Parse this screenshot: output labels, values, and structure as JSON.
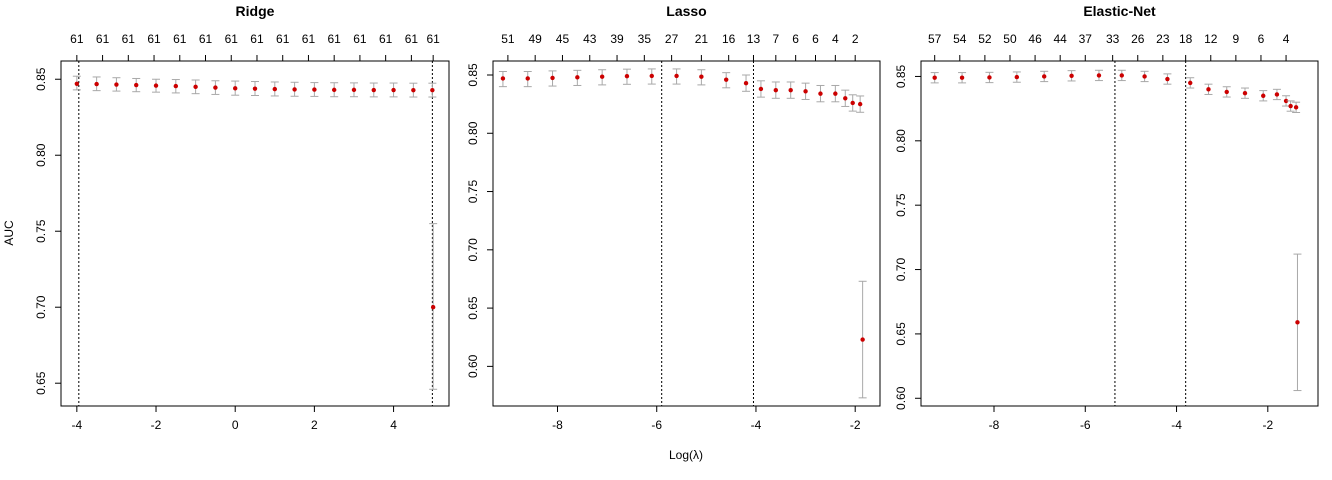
{
  "figure": {
    "ylabel": "AUC",
    "xlabel": "Log(λ)"
  },
  "chart_data": [
    {
      "type": "scatter",
      "title": "Ridge",
      "xlabel": "",
      "ylabel": "AUC",
      "xlim": [
        -4.4,
        5.4
      ],
      "ylim": [
        0.635,
        0.862
      ],
      "xticks": [
        -4,
        -2,
        0,
        2,
        4
      ],
      "yticks": [
        0.65,
        0.7,
        0.75,
        0.8,
        0.85
      ],
      "top_axis": {
        "labels": [
          "61",
          "61",
          "61",
          "61",
          "61",
          "61",
          "61",
          "61",
          "61",
          "61",
          "61",
          "61",
          "61",
          "61",
          "61"
        ],
        "positions": [
          -4,
          -3.35,
          -2.7,
          -2.05,
          -1.4,
          -0.75,
          -0.1,
          0.55,
          1.2,
          1.85,
          2.5,
          3.15,
          3.8,
          4.45,
          5
        ]
      },
      "vlines": [
        -3.95,
        4.98
      ],
      "series": [
        {
          "points": [
            {
              "x": -4.0,
              "y": 0.847,
              "lo": 0.843,
              "hi": 0.852
            },
            {
              "x": -3.5,
              "y": 0.8468,
              "lo": 0.8425,
              "hi": 0.8515
            },
            {
              "x": -3.0,
              "y": 0.8465,
              "lo": 0.8422,
              "hi": 0.851
            },
            {
              "x": -2.5,
              "y": 0.8462,
              "lo": 0.8418,
              "hi": 0.8505
            },
            {
              "x": -2.0,
              "y": 0.8458,
              "lo": 0.8415,
              "hi": 0.85
            },
            {
              "x": -1.5,
              "y": 0.8455,
              "lo": 0.841,
              "hi": 0.8498
            },
            {
              "x": -1.0,
              "y": 0.845,
              "lo": 0.8405,
              "hi": 0.8495
            },
            {
              "x": -0.5,
              "y": 0.8445,
              "lo": 0.84,
              "hi": 0.849
            },
            {
              "x": 0.0,
              "y": 0.844,
              "lo": 0.8395,
              "hi": 0.8488
            },
            {
              "x": 0.5,
              "y": 0.8438,
              "lo": 0.8393,
              "hi": 0.8485
            },
            {
              "x": 1.0,
              "y": 0.8435,
              "lo": 0.839,
              "hi": 0.8482
            },
            {
              "x": 1.5,
              "y": 0.8433,
              "lo": 0.8388,
              "hi": 0.848
            },
            {
              "x": 2.0,
              "y": 0.8432,
              "lo": 0.8387,
              "hi": 0.8478
            },
            {
              "x": 2.5,
              "y": 0.843,
              "lo": 0.8385,
              "hi": 0.8477
            },
            {
              "x": 3.0,
              "y": 0.843,
              "lo": 0.8385,
              "hi": 0.8476
            },
            {
              "x": 3.5,
              "y": 0.8429,
              "lo": 0.8384,
              "hi": 0.8475
            },
            {
              "x": 4.0,
              "y": 0.8429,
              "lo": 0.8384,
              "hi": 0.8475
            },
            {
              "x": 4.5,
              "y": 0.8428,
              "lo": 0.8383,
              "hi": 0.8474
            },
            {
              "x": 4.98,
              "y": 0.8428,
              "lo": 0.8383,
              "hi": 0.8474
            },
            {
              "x": 5.0,
              "y": 0.7,
              "lo": 0.646,
              "hi": 0.755
            }
          ]
        }
      ]
    },
    {
      "type": "scatter",
      "title": "Lasso",
      "xlabel": "Log(λ)",
      "ylabel": "",
      "xlim": [
        -9.3,
        -1.5
      ],
      "ylim": [
        0.566,
        0.862
      ],
      "xticks": [
        -8,
        -6,
        -4,
        -2
      ],
      "yticks": [
        0.6,
        0.65,
        0.7,
        0.75,
        0.8,
        0.85
      ],
      "top_axis": {
        "labels": [
          "51",
          "49",
          "45",
          "43",
          "39",
          "35",
          "27",
          "21",
          "16",
          "13",
          "7",
          "6",
          "6",
          "4",
          "2"
        ],
        "positions": [
          -9.0,
          -8.45,
          -7.9,
          -7.35,
          -6.8,
          -6.25,
          -5.7,
          -5.1,
          -4.55,
          -4.05,
          -3.6,
          -3.2,
          -2.8,
          -2.4,
          -2.0
        ]
      },
      "vlines": [
        -5.9,
        -4.05
      ],
      "series": [
        {
          "points": [
            {
              "x": -9.1,
              "y": 0.847,
              "lo": 0.84,
              "hi": 0.853
            },
            {
              "x": -8.6,
              "y": 0.847,
              "lo": 0.84,
              "hi": 0.853
            },
            {
              "x": -8.1,
              "y": 0.8475,
              "lo": 0.8405,
              "hi": 0.8535
            },
            {
              "x": -7.6,
              "y": 0.848,
              "lo": 0.841,
              "hi": 0.854
            },
            {
              "x": -7.1,
              "y": 0.8485,
              "lo": 0.8415,
              "hi": 0.8545
            },
            {
              "x": -6.6,
              "y": 0.849,
              "lo": 0.842,
              "hi": 0.855
            },
            {
              "x": -6.1,
              "y": 0.8492,
              "lo": 0.8422,
              "hi": 0.8552
            },
            {
              "x": -5.6,
              "y": 0.8492,
              "lo": 0.8422,
              "hi": 0.8552
            },
            {
              "x": -5.1,
              "y": 0.8485,
              "lo": 0.8415,
              "hi": 0.8545
            },
            {
              "x": -4.6,
              "y": 0.846,
              "lo": 0.839,
              "hi": 0.852
            },
            {
              "x": -4.2,
              "y": 0.843,
              "lo": 0.836,
              "hi": 0.85
            },
            {
              "x": -3.9,
              "y": 0.838,
              "lo": 0.831,
              "hi": 0.845
            },
            {
              "x": -3.6,
              "y": 0.837,
              "lo": 0.83,
              "hi": 0.844
            },
            {
              "x": -3.3,
              "y": 0.837,
              "lo": 0.83,
              "hi": 0.844
            },
            {
              "x": -3.0,
              "y": 0.836,
              "lo": 0.829,
              "hi": 0.843
            },
            {
              "x": -2.7,
              "y": 0.834,
              "lo": 0.827,
              "hi": 0.841
            },
            {
              "x": -2.4,
              "y": 0.834,
              "lo": 0.827,
              "hi": 0.841
            },
            {
              "x": -2.2,
              "y": 0.83,
              "lo": 0.823,
              "hi": 0.837
            },
            {
              "x": -2.05,
              "y": 0.826,
              "lo": 0.819,
              "hi": 0.833
            },
            {
              "x": -1.9,
              "y": 0.825,
              "lo": 0.818,
              "hi": 0.832
            },
            {
              "x": -1.85,
              "y": 0.623,
              "lo": 0.573,
              "hi": 0.673
            }
          ]
        }
      ]
    },
    {
      "type": "scatter",
      "title": "Elastic-Net",
      "xlabel": "",
      "ylabel": "",
      "xlim": [
        -9.6,
        -0.9
      ],
      "ylim": [
        0.594,
        0.862
      ],
      "xticks": [
        -8,
        -6,
        -4,
        -2
      ],
      "yticks": [
        0.6,
        0.65,
        0.7,
        0.75,
        0.8,
        0.85
      ],
      "top_axis": {
        "labels": [
          "57",
          "54",
          "52",
          "50",
          "46",
          "44",
          "37",
          "33",
          "26",
          "23",
          "18",
          "12",
          "9",
          "6",
          "4"
        ],
        "positions": [
          -9.3,
          -8.75,
          -8.2,
          -7.65,
          -7.1,
          -6.55,
          -6.0,
          -5.4,
          -4.85,
          -4.3,
          -3.8,
          -3.25,
          -2.7,
          -2.15,
          -1.6
        ]
      },
      "vlines": [
        -5.35,
        -3.8
      ],
      "series": [
        {
          "points": [
            {
              "x": -9.3,
              "y": 0.849,
              "lo": 0.845,
              "hi": 0.853
            },
            {
              "x": -8.7,
              "y": 0.849,
              "lo": 0.845,
              "hi": 0.853
            },
            {
              "x": -8.1,
              "y": 0.8492,
              "lo": 0.8452,
              "hi": 0.8532
            },
            {
              "x": -7.5,
              "y": 0.8495,
              "lo": 0.8455,
              "hi": 0.8535
            },
            {
              "x": -6.9,
              "y": 0.85,
              "lo": 0.846,
              "hi": 0.854
            },
            {
              "x": -6.3,
              "y": 0.8505,
              "lo": 0.8465,
              "hi": 0.8545
            },
            {
              "x": -5.7,
              "y": 0.8508,
              "lo": 0.8468,
              "hi": 0.8548
            },
            {
              "x": -5.2,
              "y": 0.8508,
              "lo": 0.8468,
              "hi": 0.8548
            },
            {
              "x": -4.7,
              "y": 0.85,
              "lo": 0.846,
              "hi": 0.854
            },
            {
              "x": -4.2,
              "y": 0.848,
              "lo": 0.844,
              "hi": 0.852
            },
            {
              "x": -3.7,
              "y": 0.845,
              "lo": 0.841,
              "hi": 0.849
            },
            {
              "x": -3.3,
              "y": 0.84,
              "lo": 0.836,
              "hi": 0.844
            },
            {
              "x": -2.9,
              "y": 0.838,
              "lo": 0.834,
              "hi": 0.842
            },
            {
              "x": -2.5,
              "y": 0.837,
              "lo": 0.833,
              "hi": 0.841
            },
            {
              "x": -2.1,
              "y": 0.835,
              "lo": 0.831,
              "hi": 0.839
            },
            {
              "x": -1.8,
              "y": 0.836,
              "lo": 0.832,
              "hi": 0.84
            },
            {
              "x": -1.6,
              "y": 0.831,
              "lo": 0.827,
              "hi": 0.835
            },
            {
              "x": -1.5,
              "y": 0.827,
              "lo": 0.823,
              "hi": 0.831
            },
            {
              "x": -1.38,
              "y": 0.826,
              "lo": 0.822,
              "hi": 0.83
            },
            {
              "x": -1.35,
              "y": 0.659,
              "lo": 0.606,
              "hi": 0.712
            }
          ]
        }
      ]
    }
  ]
}
